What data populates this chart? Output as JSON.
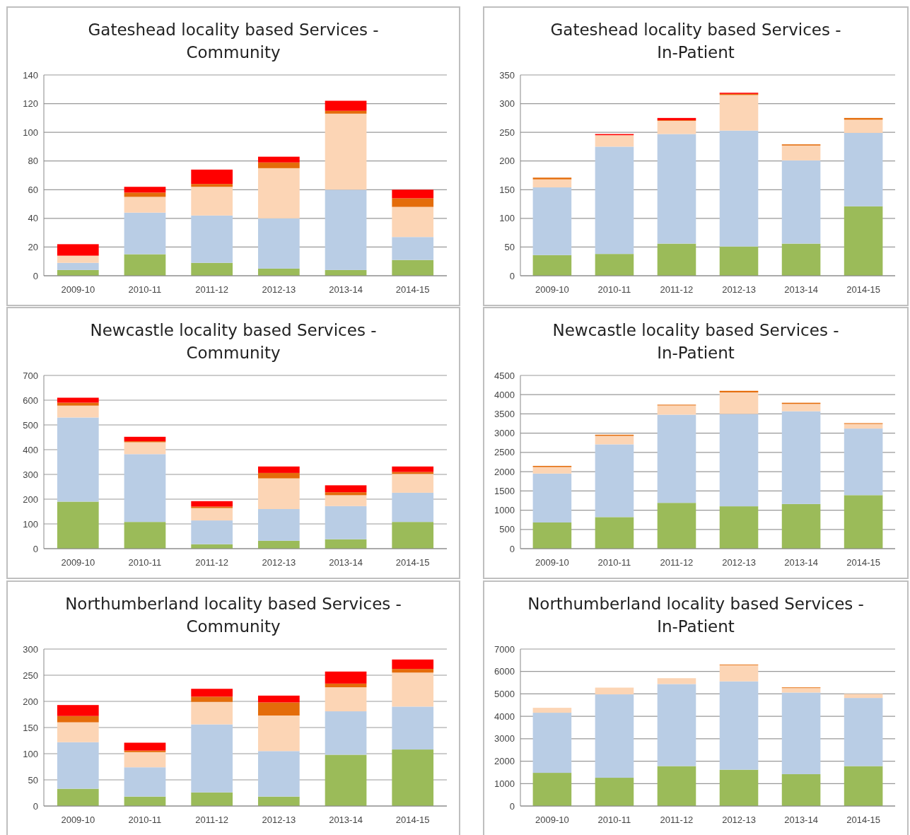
{
  "chart_data": [
    {
      "type": "bar",
      "stacked": true,
      "title": "Gateshead locality based Services - Community",
      "categories": [
        "2009-10",
        "2010-11",
        "2011-12",
        "2012-13",
        "2013-14",
        "2014-15"
      ],
      "ylim": [
        0,
        140
      ],
      "yticks": [
        0,
        20,
        40,
        60,
        80,
        100,
        120,
        140
      ],
      "grid": "y",
      "series": [
        {
          "color": "#9bbb59",
          "values": [
            4,
            15,
            9,
            5,
            4,
            11
          ]
        },
        {
          "color": "#b9cde5",
          "values": [
            5,
            29,
            33,
            35,
            56,
            16
          ]
        },
        {
          "color": "#fcd5b5",
          "values": [
            5,
            11,
            20,
            35,
            53,
            21
          ]
        },
        {
          "color": "#e46c0a",
          "values": [
            0,
            3,
            2,
            4,
            2,
            6
          ]
        },
        {
          "color": "#ff0000",
          "values": [
            8,
            4,
            10,
            4,
            7,
            6
          ]
        }
      ]
    },
    {
      "type": "bar",
      "stacked": true,
      "title": "Gateshead locality based Services - In-Patient",
      "categories": [
        "2009-10",
        "2010-11",
        "2011-12",
        "2012-13",
        "2013-14",
        "2014-15"
      ],
      "ylim": [
        0,
        350
      ],
      "yticks": [
        0,
        50,
        100,
        150,
        200,
        250,
        300,
        350
      ],
      "grid": "y",
      "series": [
        {
          "color": "#9bbb59",
          "values": [
            36,
            38,
            56,
            51,
            56,
            121
          ]
        },
        {
          "color": "#b9cde5",
          "values": [
            118,
            187,
            191,
            202,
            145,
            128
          ]
        },
        {
          "color": "#fcd5b5",
          "values": [
            14,
            20,
            23,
            62,
            26,
            23
          ]
        },
        {
          "color": "#e46c0a",
          "values": [
            3,
            0,
            1,
            2,
            2,
            3
          ]
        },
        {
          "color": "#ff0000",
          "values": [
            0,
            2,
            4,
            2,
            0,
            0
          ]
        }
      ]
    },
    {
      "type": "bar",
      "stacked": true,
      "title": "Newcastle locality based Services - Community",
      "categories": [
        "2009-10",
        "2010-11",
        "2011-12",
        "2012-13",
        "2013-14",
        "2014-15"
      ],
      "ylim": [
        0,
        700
      ],
      "yticks": [
        0,
        100,
        200,
        300,
        400,
        500,
        600,
        700
      ],
      "grid": "y",
      "series": [
        {
          "color": "#9bbb59",
          "values": [
            190,
            108,
            18,
            32,
            38,
            108
          ]
        },
        {
          "color": "#b9cde5",
          "values": [
            340,
            274,
            96,
            128,
            134,
            118
          ]
        },
        {
          "color": "#fcd5b5",
          "values": [
            48,
            48,
            50,
            124,
            44,
            76
          ]
        },
        {
          "color": "#e46c0a",
          "values": [
            12,
            4,
            6,
            22,
            12,
            8
          ]
        },
        {
          "color": "#ff0000",
          "values": [
            20,
            18,
            22,
            26,
            28,
            22
          ]
        }
      ]
    },
    {
      "type": "bar",
      "stacked": true,
      "title": "Newcastle locality based Services - In-Patient",
      "categories": [
        "2009-10",
        "2010-11",
        "2011-12",
        "2012-13",
        "2013-14",
        "2014-15"
      ],
      "ylim": [
        0,
        4500
      ],
      "yticks": [
        0,
        500,
        1000,
        1500,
        2000,
        2500,
        3000,
        3500,
        4000,
        4500
      ],
      "grid": "y",
      "series": [
        {
          "color": "#9bbb59",
          "values": [
            680,
            820,
            1190,
            1100,
            1160,
            1390
          ]
        },
        {
          "color": "#b9cde5",
          "values": [
            1270,
            1890,
            2290,
            2400,
            2410,
            1730
          ]
        },
        {
          "color": "#fcd5b5",
          "values": [
            170,
            220,
            240,
            560,
            190,
            120
          ]
        },
        {
          "color": "#e46c0a",
          "values": [
            30,
            30,
            20,
            40,
            30,
            20
          ]
        }
      ]
    },
    {
      "type": "bar",
      "stacked": true,
      "title": "Northumberland locality based Services - Community",
      "categories": [
        "2009-10",
        "2010-11",
        "2011-12",
        "2012-13",
        "2013-14",
        "2014-15"
      ],
      "ylim": [
        0,
        300
      ],
      "yticks": [
        0,
        50,
        100,
        150,
        200,
        250,
        300
      ],
      "grid": "y",
      "series": [
        {
          "color": "#9bbb59",
          "values": [
            33,
            18,
            26,
            18,
            98,
            108
          ]
        },
        {
          "color": "#b9cde5",
          "values": [
            89,
            56,
            130,
            87,
            83,
            82
          ]
        },
        {
          "color": "#fcd5b5",
          "values": [
            38,
            29,
            43,
            68,
            46,
            65
          ]
        },
        {
          "color": "#e46c0a",
          "values": [
            12,
            3,
            10,
            25,
            7,
            7
          ]
        },
        {
          "color": "#ff0000",
          "values": [
            21,
            15,
            15,
            13,
            23,
            18
          ]
        }
      ]
    },
    {
      "type": "bar",
      "stacked": true,
      "title": "Northumberland locality based Services - In-Patient",
      "categories": [
        "2009-10",
        "2010-11",
        "2011-12",
        "2012-13",
        "2013-14",
        "2014-15"
      ],
      "ylim": [
        0,
        7000
      ],
      "yticks": [
        0,
        1000,
        2000,
        3000,
        4000,
        5000,
        6000,
        7000
      ],
      "grid": "y",
      "series": [
        {
          "color": "#9bbb59",
          "values": [
            1480,
            1260,
            1780,
            1620,
            1420,
            1780
          ]
        },
        {
          "color": "#b9cde5",
          "values": [
            2680,
            3720,
            3660,
            3940,
            3640,
            3040
          ]
        },
        {
          "color": "#fcd5b5",
          "values": [
            220,
            300,
            260,
            720,
            200,
            180
          ]
        },
        {
          "color": "#e46c0a",
          "values": [
            0,
            0,
            0,
            30,
            30,
            0
          ]
        }
      ]
    }
  ]
}
